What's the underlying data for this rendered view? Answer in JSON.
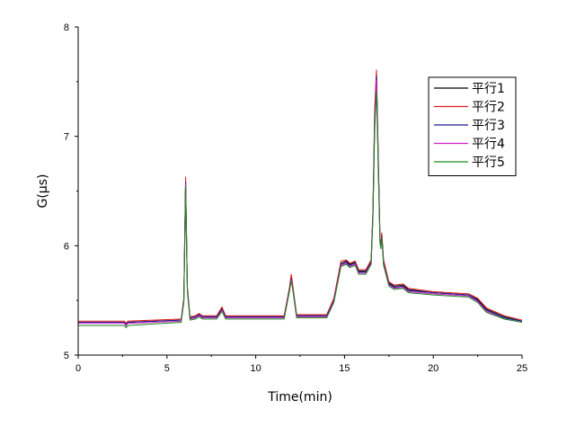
{
  "chart_data": {
    "type": "line",
    "title": "",
    "xlabel": "Time(min)",
    "ylabel": "G(µs)",
    "xlim": [
      0,
      25
    ],
    "ylim": [
      5,
      8
    ],
    "xticks": [
      0,
      5,
      10,
      15,
      20,
      25
    ],
    "yticks": [
      5,
      6,
      7,
      8
    ],
    "xtick_labels": [
      "0",
      "5",
      "10",
      "15",
      "20",
      "25"
    ],
    "ytick_labels": [
      "5",
      "6",
      "7",
      "8"
    ],
    "grid": false,
    "legend_position": "top-right",
    "series": [
      {
        "name": "平行1",
        "color": "#000000",
        "points": [
          [
            0,
            5.3
          ],
          [
            2.6,
            5.3
          ],
          [
            2.7,
            5.27
          ],
          [
            2.8,
            5.3
          ],
          [
            5.8,
            5.32
          ],
          [
            5.95,
            5.5
          ],
          [
            6.05,
            6.6
          ],
          [
            6.15,
            5.6
          ],
          [
            6.3,
            5.34
          ],
          [
            6.6,
            5.35
          ],
          [
            6.8,
            5.37
          ],
          [
            7.0,
            5.35
          ],
          [
            7.8,
            5.35
          ],
          [
            8.1,
            5.43
          ],
          [
            8.3,
            5.35
          ],
          [
            11.6,
            5.35
          ],
          [
            11.9,
            5.6
          ],
          [
            12.0,
            5.72
          ],
          [
            12.1,
            5.6
          ],
          [
            12.3,
            5.36
          ],
          [
            14.0,
            5.36
          ],
          [
            14.4,
            5.5
          ],
          [
            14.8,
            5.84
          ],
          [
            15.1,
            5.86
          ],
          [
            15.3,
            5.83
          ],
          [
            15.6,
            5.85
          ],
          [
            15.8,
            5.77
          ],
          [
            16.2,
            5.77
          ],
          [
            16.5,
            5.86
          ],
          [
            16.6,
            6.3
          ],
          [
            16.7,
            7.2
          ],
          [
            16.8,
            7.58
          ],
          [
            16.9,
            6.8
          ],
          [
            17.0,
            6.05
          ],
          [
            17.05,
            6.0
          ],
          [
            17.1,
            6.1
          ],
          [
            17.2,
            5.85
          ],
          [
            17.5,
            5.66
          ],
          [
            17.8,
            5.63
          ],
          [
            18.3,
            5.64
          ],
          [
            18.6,
            5.6
          ],
          [
            20.0,
            5.57
          ],
          [
            22.0,
            5.55
          ],
          [
            22.5,
            5.51
          ],
          [
            23.0,
            5.42
          ],
          [
            24.0,
            5.35
          ],
          [
            25.0,
            5.31
          ]
        ]
      },
      {
        "name": "平行2",
        "color": "#e01818",
        "points": [
          [
            0,
            5.31
          ],
          [
            2.6,
            5.31
          ],
          [
            2.7,
            5.29
          ],
          [
            2.8,
            5.31
          ],
          [
            5.8,
            5.33
          ],
          [
            5.95,
            5.52
          ],
          [
            6.05,
            6.63
          ],
          [
            6.15,
            5.62
          ],
          [
            6.3,
            5.35
          ],
          [
            6.6,
            5.36
          ],
          [
            6.8,
            5.38
          ],
          [
            7.0,
            5.36
          ],
          [
            7.8,
            5.36
          ],
          [
            8.1,
            5.44
          ],
          [
            8.3,
            5.36
          ],
          [
            11.6,
            5.36
          ],
          [
            11.9,
            5.62
          ],
          [
            12.0,
            5.74
          ],
          [
            12.1,
            5.62
          ],
          [
            12.3,
            5.37
          ],
          [
            14.0,
            5.37
          ],
          [
            14.4,
            5.52
          ],
          [
            14.8,
            5.86
          ],
          [
            15.1,
            5.87
          ],
          [
            15.3,
            5.84
          ],
          [
            15.6,
            5.86
          ],
          [
            15.8,
            5.78
          ],
          [
            16.2,
            5.78
          ],
          [
            16.5,
            5.87
          ],
          [
            16.6,
            6.32
          ],
          [
            16.7,
            7.25
          ],
          [
            16.8,
            7.61
          ],
          [
            16.9,
            6.85
          ],
          [
            17.0,
            6.07
          ],
          [
            17.05,
            6.02
          ],
          [
            17.1,
            6.12
          ],
          [
            17.2,
            5.87
          ],
          [
            17.5,
            5.67
          ],
          [
            17.8,
            5.64
          ],
          [
            18.3,
            5.65
          ],
          [
            18.6,
            5.61
          ],
          [
            20.0,
            5.58
          ],
          [
            22.0,
            5.56
          ],
          [
            22.5,
            5.52
          ],
          [
            23.0,
            5.43
          ],
          [
            24.0,
            5.36
          ],
          [
            25.0,
            5.32
          ]
        ]
      },
      {
        "name": "平行3",
        "color": "#1f1f8f",
        "points": [
          [
            0,
            5.3
          ],
          [
            2.6,
            5.3
          ],
          [
            2.7,
            5.28
          ],
          [
            2.8,
            5.3
          ],
          [
            5.8,
            5.32
          ],
          [
            5.95,
            5.5
          ],
          [
            6.05,
            6.58
          ],
          [
            6.15,
            5.6
          ],
          [
            6.3,
            5.34
          ],
          [
            6.6,
            5.35
          ],
          [
            6.8,
            5.37
          ],
          [
            7.0,
            5.35
          ],
          [
            7.8,
            5.35
          ],
          [
            8.1,
            5.42
          ],
          [
            8.3,
            5.35
          ],
          [
            11.6,
            5.35
          ],
          [
            11.9,
            5.6
          ],
          [
            12.0,
            5.7
          ],
          [
            12.1,
            5.6
          ],
          [
            12.3,
            5.36
          ],
          [
            14.0,
            5.36
          ],
          [
            14.4,
            5.5
          ],
          [
            14.8,
            5.83
          ],
          [
            15.1,
            5.85
          ],
          [
            15.3,
            5.82
          ],
          [
            15.6,
            5.84
          ],
          [
            15.8,
            5.76
          ],
          [
            16.2,
            5.76
          ],
          [
            16.5,
            5.85
          ],
          [
            16.6,
            6.28
          ],
          [
            16.7,
            7.15
          ],
          [
            16.8,
            7.55
          ],
          [
            16.9,
            6.78
          ],
          [
            17.0,
            6.04
          ],
          [
            17.05,
            5.99
          ],
          [
            17.1,
            6.09
          ],
          [
            17.2,
            5.84
          ],
          [
            17.5,
            5.65
          ],
          [
            17.8,
            5.62
          ],
          [
            18.3,
            5.63
          ],
          [
            18.6,
            5.59
          ],
          [
            20.0,
            5.57
          ],
          [
            22.0,
            5.55
          ],
          [
            22.5,
            5.5
          ],
          [
            23.0,
            5.41
          ],
          [
            24.0,
            5.34
          ],
          [
            25.0,
            5.31
          ]
        ]
      },
      {
        "name": "平行4",
        "color": "#d020d0",
        "points": [
          [
            0,
            5.29
          ],
          [
            2.6,
            5.29
          ],
          [
            2.7,
            5.27
          ],
          [
            2.8,
            5.29
          ],
          [
            5.8,
            5.31
          ],
          [
            5.95,
            5.49
          ],
          [
            6.05,
            6.57
          ],
          [
            6.15,
            5.59
          ],
          [
            6.3,
            5.33
          ],
          [
            6.6,
            5.34
          ],
          [
            6.8,
            5.36
          ],
          [
            7.0,
            5.34
          ],
          [
            7.8,
            5.34
          ],
          [
            8.1,
            5.41
          ],
          [
            8.3,
            5.34
          ],
          [
            11.6,
            5.34
          ],
          [
            11.9,
            5.59
          ],
          [
            12.0,
            5.69
          ],
          [
            12.1,
            5.59
          ],
          [
            12.3,
            5.35
          ],
          [
            14.0,
            5.35
          ],
          [
            14.4,
            5.49
          ],
          [
            14.8,
            5.82
          ],
          [
            15.1,
            5.84
          ],
          [
            15.3,
            5.81
          ],
          [
            15.6,
            5.83
          ],
          [
            15.8,
            5.75
          ],
          [
            16.2,
            5.75
          ],
          [
            16.5,
            5.84
          ],
          [
            16.6,
            6.26
          ],
          [
            16.7,
            7.1
          ],
          [
            16.8,
            7.52
          ],
          [
            16.9,
            6.75
          ],
          [
            17.0,
            6.03
          ],
          [
            17.05,
            5.98
          ],
          [
            17.1,
            6.08
          ],
          [
            17.2,
            5.83
          ],
          [
            17.5,
            5.64
          ],
          [
            17.8,
            5.61
          ],
          [
            18.3,
            5.62
          ],
          [
            18.6,
            5.58
          ],
          [
            20.0,
            5.56
          ],
          [
            22.0,
            5.54
          ],
          [
            22.5,
            5.49
          ],
          [
            23.0,
            5.4
          ],
          [
            24.0,
            5.33
          ],
          [
            25.0,
            5.3
          ]
        ]
      },
      {
        "name": "平行5",
        "color": "#1a8a1a",
        "points": [
          [
            0,
            5.27
          ],
          [
            2.6,
            5.27
          ],
          [
            2.7,
            5.25
          ],
          [
            2.8,
            5.27
          ],
          [
            5.8,
            5.3
          ],
          [
            5.95,
            5.48
          ],
          [
            6.05,
            6.55
          ],
          [
            6.15,
            5.58
          ],
          [
            6.3,
            5.32
          ],
          [
            6.6,
            5.33
          ],
          [
            6.8,
            5.35
          ],
          [
            7.0,
            5.33
          ],
          [
            7.8,
            5.33
          ],
          [
            8.1,
            5.4
          ],
          [
            8.3,
            5.33
          ],
          [
            11.6,
            5.33
          ],
          [
            11.9,
            5.58
          ],
          [
            12.0,
            5.68
          ],
          [
            12.1,
            5.58
          ],
          [
            12.3,
            5.34
          ],
          [
            14.0,
            5.34
          ],
          [
            14.4,
            5.48
          ],
          [
            14.8,
            5.81
          ],
          [
            15.1,
            5.83
          ],
          [
            15.3,
            5.8
          ],
          [
            15.6,
            5.82
          ],
          [
            15.8,
            5.74
          ],
          [
            16.2,
            5.74
          ],
          [
            16.5,
            5.83
          ],
          [
            16.6,
            6.25
          ],
          [
            16.7,
            7.05
          ],
          [
            16.8,
            7.42
          ],
          [
            16.9,
            6.7
          ],
          [
            17.0,
            6.02
          ],
          [
            17.05,
            5.97
          ],
          [
            17.1,
            6.07
          ],
          [
            17.2,
            5.82
          ],
          [
            17.5,
            5.63
          ],
          [
            17.8,
            5.6
          ],
          [
            18.3,
            5.61
          ],
          [
            18.6,
            5.57
          ],
          [
            20.0,
            5.55
          ],
          [
            22.0,
            5.53
          ],
          [
            22.5,
            5.48
          ],
          [
            23.0,
            5.39
          ],
          [
            24.0,
            5.33
          ],
          [
            25.0,
            5.3
          ]
        ]
      }
    ]
  }
}
